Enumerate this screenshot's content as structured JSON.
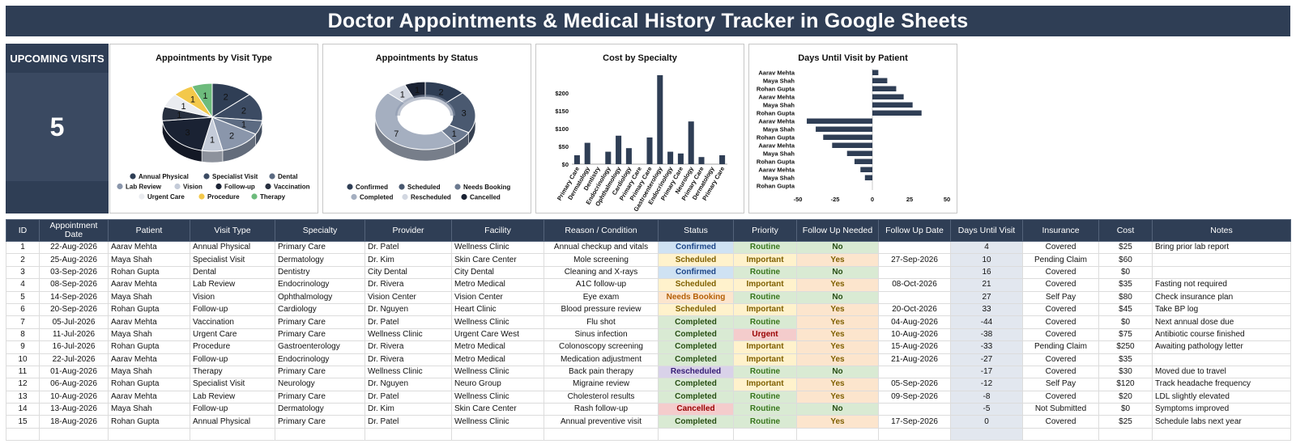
{
  "title": "Doctor Appointments & Medical History Tracker in Google Sheets",
  "upcoming": {
    "label": "UPCOMING VISITS",
    "value": "5"
  },
  "chart_data": [
    {
      "type": "pie",
      "title": "Appointments by Visit Type",
      "categories": [
        "Annual Physical",
        "Specialist Visit",
        "Dental",
        "Lab Review",
        "Vision",
        "Follow-up",
        "Vaccination",
        "Urgent Care",
        "Procedure",
        "Therapy"
      ],
      "values": [
        2,
        2,
        1,
        2,
        1,
        3,
        1,
        1,
        1,
        1
      ],
      "colors": [
        "#2f3e55",
        "#3c4b63",
        "#5c6b82",
        "#8a96ab",
        "#c4cbd8",
        "#1a2233",
        "#272f3f",
        "#eaecf0",
        "#f3c84a",
        "#6dbb7c"
      ],
      "legend": "bottom"
    },
    {
      "type": "pie",
      "title": "Appointments by Status",
      "categories": [
        "Confirmed",
        "Scheduled",
        "Needs Booking",
        "Completed",
        "Rescheduled",
        "Cancelled"
      ],
      "values": [
        2,
        3,
        1,
        7,
        1,
        1
      ],
      "colors": [
        "#2f3e55",
        "#4a5970",
        "#6c7a90",
        "#a5afc0",
        "#d2d7e1",
        "#1a2233"
      ],
      "legend": "bottom"
    },
    {
      "type": "bar",
      "title": "Cost by Specialty",
      "categories": [
        "Primary Care",
        "Dermatology",
        "Dentistry",
        "Endocrinology",
        "Ophthalmology",
        "Cardiology",
        "Primary Care",
        "Primary Care",
        "Gastroenterology",
        "Endocrinology",
        "Primary Care",
        "Neurology",
        "Primary Care",
        "Dermatology",
        "Primary Care"
      ],
      "values": [
        25,
        60,
        0,
        35,
        80,
        45,
        0,
        75,
        250,
        35,
        30,
        120,
        20,
        0,
        25
      ],
      "yticks": [
        "$0",
        "$50",
        "$100",
        "$150",
        "$200"
      ],
      "ylim": [
        0,
        250
      ]
    },
    {
      "type": "bar",
      "orientation": "horizontal",
      "title": "Days Until Visit by Patient",
      "categories": [
        "Aarav Mehta",
        "Maya Shah",
        "Rohan Gupta",
        "Aarav Mehta",
        "Maya Shah",
        "Rohan Gupta",
        "Aarav Mehta",
        "Maya Shah",
        "Rohan Gupta",
        "Aarav Mehta",
        "Maya Shah",
        "Rohan Gupta",
        "Aarav Mehta",
        "Maya Shah",
        "Rohan Gupta"
      ],
      "values": [
        4,
        10,
        16,
        21,
        27,
        33,
        -44,
        -38,
        -33,
        -27,
        -17,
        -12,
        -8,
        -5,
        0
      ],
      "xticks": [
        "-50",
        "-25",
        "0",
        "25",
        "50"
      ],
      "xlim": [
        -50,
        50
      ]
    }
  ],
  "table": {
    "headers": [
      "ID",
      "Appointment Date",
      "Patient",
      "Visit Type",
      "Specialty",
      "Provider",
      "Facility",
      "Reason / Condition",
      "Status",
      "Priority",
      "Follow Up Needed",
      "Follow Up Date",
      "Days Until Visit",
      "Insurance",
      "Cost",
      "Notes"
    ],
    "rows": [
      [
        "1",
        "22-Aug-2026",
        "Aarav Mehta",
        "Annual Physical",
        "Primary Care",
        "Dr. Patel",
        "Wellness Clinic",
        "Annual checkup and vitals",
        "Confirmed",
        "Routine",
        "No",
        "",
        "4",
        "Covered",
        "$25",
        "Bring prior lab report"
      ],
      [
        "2",
        "25-Aug-2026",
        "Maya Shah",
        "Specialist Visit",
        "Dermatology",
        "Dr. Kim",
        "Skin Care Center",
        "Mole screening",
        "Scheduled",
        "Important",
        "Yes",
        "27-Sep-2026",
        "10",
        "Pending Claim",
        "$60",
        ""
      ],
      [
        "3",
        "03-Sep-2026",
        "Rohan Gupta",
        "Dental",
        "Dentistry",
        "City Dental",
        "City Dental",
        "Cleaning and X-rays",
        "Confirmed",
        "Routine",
        "No",
        "",
        "16",
        "Covered",
        "$0",
        ""
      ],
      [
        "4",
        "08-Sep-2026",
        "Aarav Mehta",
        "Lab Review",
        "Endocrinology",
        "Dr. Rivera",
        "Metro Medical",
        "A1C follow-up",
        "Scheduled",
        "Important",
        "Yes",
        "08-Oct-2026",
        "21",
        "Covered",
        "$35",
        "Fasting not required"
      ],
      [
        "5",
        "14-Sep-2026",
        "Maya Shah",
        "Vision",
        "Ophthalmology",
        "Vision Center",
        "Vision Center",
        "Eye exam",
        "Needs Booking",
        "Routine",
        "No",
        "",
        "27",
        "Self Pay",
        "$80",
        "Check insurance plan"
      ],
      [
        "6",
        "20-Sep-2026",
        "Rohan Gupta",
        "Follow-up",
        "Cardiology",
        "Dr. Nguyen",
        "Heart Clinic",
        "Blood pressure review",
        "Scheduled",
        "Important",
        "Yes",
        "20-Oct-2026",
        "33",
        "Covered",
        "$45",
        "Take BP log"
      ],
      [
        "7",
        "05-Jul-2026",
        "Aarav Mehta",
        "Vaccination",
        "Primary Care",
        "Dr. Patel",
        "Wellness Clinic",
        "Flu shot",
        "Completed",
        "Routine",
        "Yes",
        "04-Aug-2026",
        "-44",
        "Covered",
        "$0",
        "Next annual dose due"
      ],
      [
        "8",
        "11-Jul-2026",
        "Maya Shah",
        "Urgent Care",
        "Primary Care",
        "Wellness Clinic",
        "Urgent Care West",
        "Sinus infection",
        "Completed",
        "Urgent",
        "Yes",
        "10-Aug-2026",
        "-38",
        "Covered",
        "$75",
        "Antibiotic course finished"
      ],
      [
        "9",
        "16-Jul-2026",
        "Rohan Gupta",
        "Procedure",
        "Gastroenterology",
        "Dr. Rivera",
        "Metro Medical",
        "Colonoscopy screening",
        "Completed",
        "Important",
        "Yes",
        "15-Aug-2026",
        "-33",
        "Pending Claim",
        "$250",
        "Awaiting pathology letter"
      ],
      [
        "10",
        "22-Jul-2026",
        "Aarav Mehta",
        "Follow-up",
        "Endocrinology",
        "Dr. Rivera",
        "Metro Medical",
        "Medication adjustment",
        "Completed",
        "Important",
        "Yes",
        "21-Aug-2026",
        "-27",
        "Covered",
        "$35",
        ""
      ],
      [
        "11",
        "01-Aug-2026",
        "Maya Shah",
        "Therapy",
        "Primary Care",
        "Wellness Clinic",
        "Wellness Clinic",
        "Back pain therapy",
        "Rescheduled",
        "Routine",
        "No",
        "",
        "-17",
        "Covered",
        "$30",
        "Moved due to travel"
      ],
      [
        "12",
        "06-Aug-2026",
        "Rohan Gupta",
        "Specialist Visit",
        "Neurology",
        "Dr. Nguyen",
        "Neuro Group",
        "Migraine review",
        "Completed",
        "Important",
        "Yes",
        "05-Sep-2026",
        "-12",
        "Self Pay",
        "$120",
        "Track headache frequency"
      ],
      [
        "13",
        "10-Aug-2026",
        "Aarav Mehta",
        "Lab Review",
        "Primary Care",
        "Dr. Patel",
        "Wellness Clinic",
        "Cholesterol results",
        "Completed",
        "Routine",
        "Yes",
        "09-Sep-2026",
        "-8",
        "Covered",
        "$20",
        "LDL slightly elevated"
      ],
      [
        "14",
        "13-Aug-2026",
        "Maya Shah",
        "Follow-up",
        "Dermatology",
        "Dr. Kim",
        "Skin Care Center",
        "Rash follow-up",
        "Cancelled",
        "Routine",
        "No",
        "",
        "-5",
        "Not Submitted",
        "$0",
        "Symptoms improved"
      ],
      [
        "15",
        "18-Aug-2026",
        "Rohan Gupta",
        "Annual Physical",
        "Primary Care",
        "Dr. Patel",
        "Wellness Clinic",
        "Annual preventive visit",
        "Completed",
        "Routine",
        "Yes",
        "17-Sep-2026",
        "0",
        "Covered",
        "$25",
        "Schedule labs next year"
      ]
    ]
  }
}
